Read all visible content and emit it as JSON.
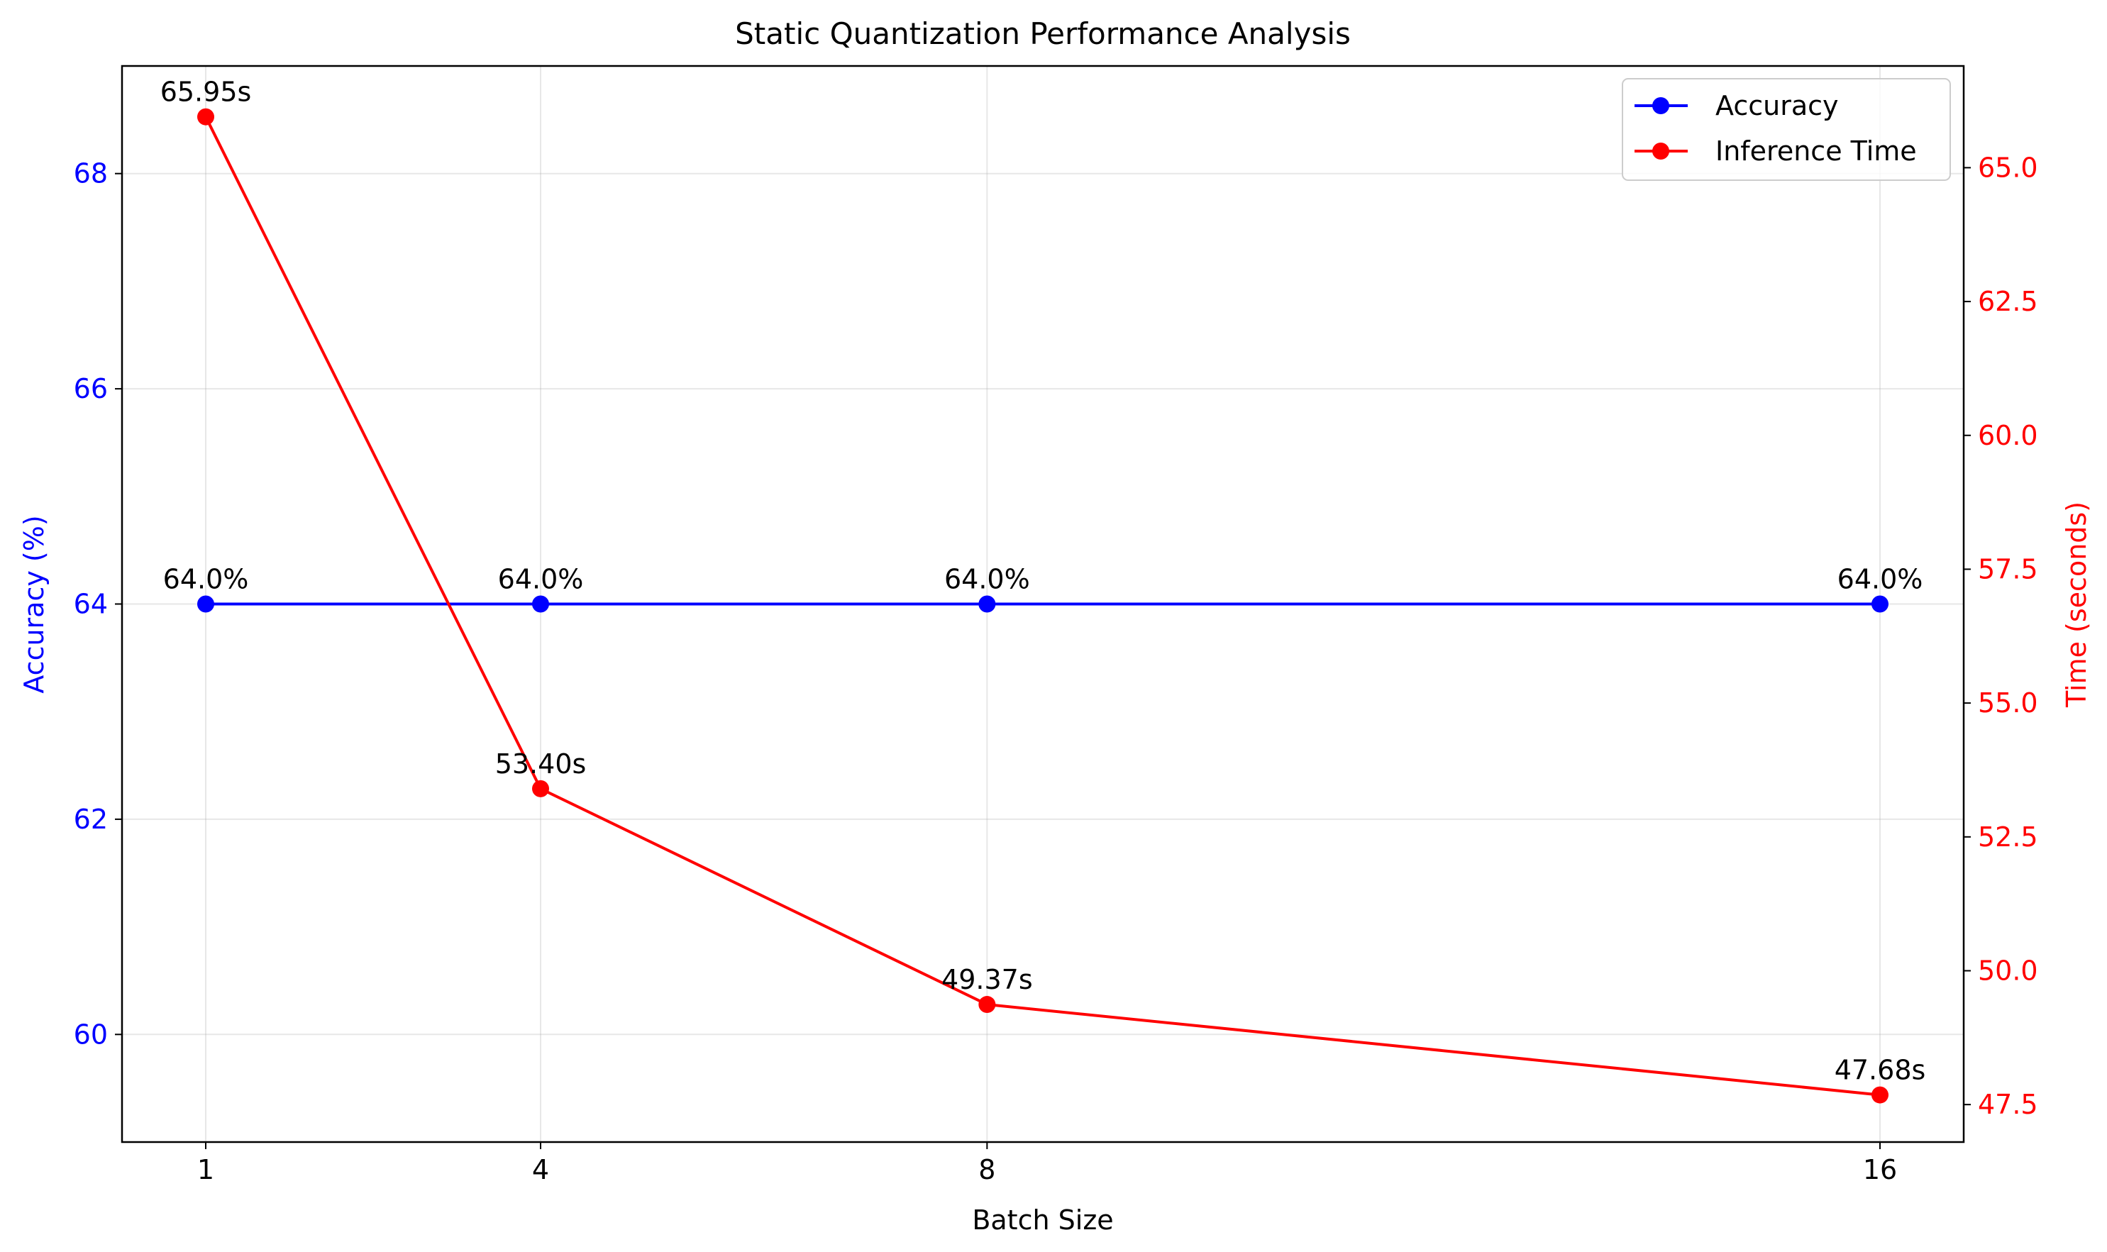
{
  "chart_data": {
    "type": "line",
    "title": "Static Quantization Performance Analysis",
    "xlabel": "Batch Size",
    "ylabel_left": "Accuracy (%)",
    "ylabel_right": "Time (seconds)",
    "x": [
      1,
      4,
      8,
      16
    ],
    "xticks": [
      "1",
      "4",
      "8",
      "16"
    ],
    "xlim": [
      0.25,
      16.75
    ],
    "ylim_left": [
      59.0,
      69.0
    ],
    "yticks_left": [
      60,
      62,
      64,
      66,
      68
    ],
    "ylim_right": [
      46.8,
      66.9
    ],
    "yticks_right": [
      "47.5",
      "50.0",
      "52.5",
      "55.0",
      "57.5",
      "60.0",
      "62.5",
      "65.0"
    ],
    "grid": true,
    "legend_position": "top-right",
    "series": [
      {
        "name": "Accuracy",
        "axis": "left",
        "color": "#0000ff",
        "values": [
          64.0,
          64.0,
          64.0,
          64.0
        ],
        "labels": [
          "64.0%",
          "64.0%",
          "64.0%",
          "64.0%"
        ]
      },
      {
        "name": "Inference Time",
        "axis": "right",
        "color": "#ff0000",
        "values": [
          65.95,
          53.4,
          49.37,
          47.68
        ],
        "labels": [
          "65.95s",
          "53.40s",
          "49.37s",
          "47.68s"
        ]
      }
    ]
  }
}
